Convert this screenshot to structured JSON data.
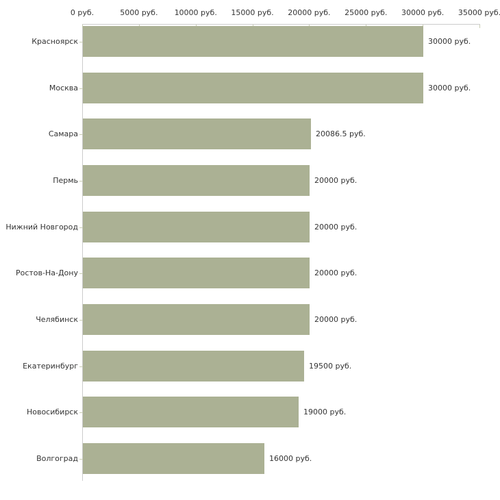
{
  "chart_data": {
    "type": "bar",
    "orientation": "horizontal",
    "title": "",
    "xlabel": "",
    "ylabel": "",
    "xlim": [
      0,
      35000
    ],
    "grid": false,
    "legend": "none",
    "categories": [
      "Красноярск",
      "Москва",
      "Самара",
      "Пермь",
      "Нижний Новгород",
      "Ростов-На-Дону",
      "Челябинск",
      "Екатеринбург",
      "Новосибирск",
      "Волгоград"
    ],
    "values": [
      30000,
      30000,
      20086.5,
      20000,
      20000,
      20000,
      20000,
      19500,
      19000,
      16000
    ],
    "value_labels": [
      "30000 руб.",
      "30000 руб.",
      "20086.5 руб.",
      "20000 руб.",
      "20000 руб.",
      "20000 руб.",
      "20000 руб.",
      "19500 руб.",
      "19000 руб.",
      "16000 руб."
    ],
    "x_tick_values": [
      0,
      5000,
      10000,
      15000,
      20000,
      25000,
      30000,
      35000
    ],
    "x_tick_labels": [
      "0 руб.",
      "5000 руб.",
      "10000 руб.",
      "15000 руб.",
      "20000 руб.",
      "25000 руб.",
      "30000 руб.",
      "35000 руб."
    ],
    "colors": {
      "bar": "#abb194",
      "axis_line": "#cccccc",
      "tick_mark": "#c9cdb4",
      "text": "#333333",
      "background": "#ffffff"
    }
  }
}
